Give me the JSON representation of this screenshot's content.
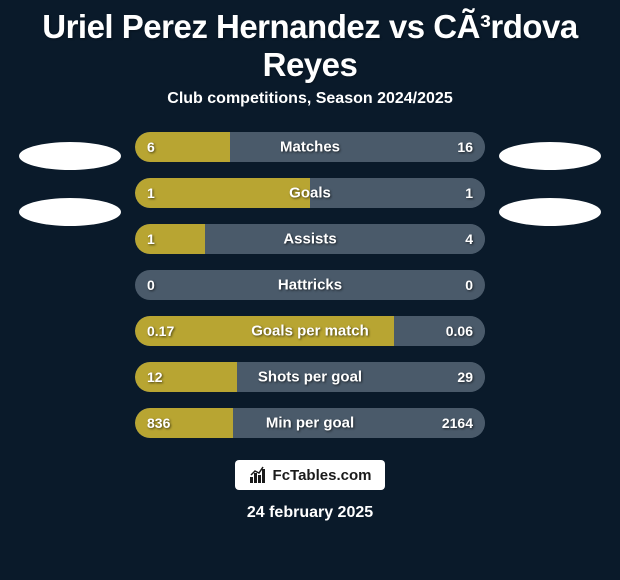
{
  "background_color": "#0a1a2a",
  "title": {
    "text": "Uriel Perez Hernandez vs CÃ³rdova Reyes",
    "fontsize": 33,
    "color": "#ffffff"
  },
  "subtitle": {
    "text": "Club competitions, Season 2024/2025",
    "fontsize": 16,
    "color": "#ffffff"
  },
  "logo_placeholder": {
    "width": 102,
    "height": 28,
    "color": "#ffffff"
  },
  "bar_style": {
    "track_color": "#4a5a6a",
    "left_color": "#b8a532",
    "right_color": "#4a5a6a",
    "label_fontsize": 15,
    "value_fontsize": 14,
    "text_color": "#ffffff"
  },
  "bars": [
    {
      "label": "Matches",
      "left_raw": 6,
      "right_raw": 16,
      "left_display": "6",
      "right_display": "16",
      "left_pct": 27,
      "right_pct": 73
    },
    {
      "label": "Goals",
      "left_raw": 1,
      "right_raw": 1,
      "left_display": "1",
      "right_display": "1",
      "left_pct": 50,
      "right_pct": 50
    },
    {
      "label": "Assists",
      "left_raw": 1,
      "right_raw": 4,
      "left_display": "1",
      "right_display": "4",
      "left_pct": 20,
      "right_pct": 80
    },
    {
      "label": "Hattricks",
      "left_raw": 0,
      "right_raw": 0,
      "left_display": "0",
      "right_display": "0",
      "left_pct": 0,
      "right_pct": 0
    },
    {
      "label": "Goals per match",
      "left_raw": 0.17,
      "right_raw": 0.06,
      "left_display": "0.17",
      "right_display": "0.06",
      "left_pct": 74,
      "right_pct": 26
    },
    {
      "label": "Shots per goal",
      "left_raw": 12,
      "right_raw": 29,
      "left_display": "12",
      "right_display": "29",
      "left_pct": 29,
      "right_pct": 71
    },
    {
      "label": "Min per goal",
      "left_raw": 836,
      "right_raw": 2164,
      "left_display": "836",
      "right_display": "2164",
      "left_pct": 28,
      "right_pct": 72
    }
  ],
  "badge": {
    "text": "FcTables.com",
    "background_color": "#ffffff",
    "text_color": "#1a1a1a",
    "fontsize": 15
  },
  "date": {
    "text": "24 february 2025",
    "fontsize": 16,
    "color": "#ffffff"
  }
}
